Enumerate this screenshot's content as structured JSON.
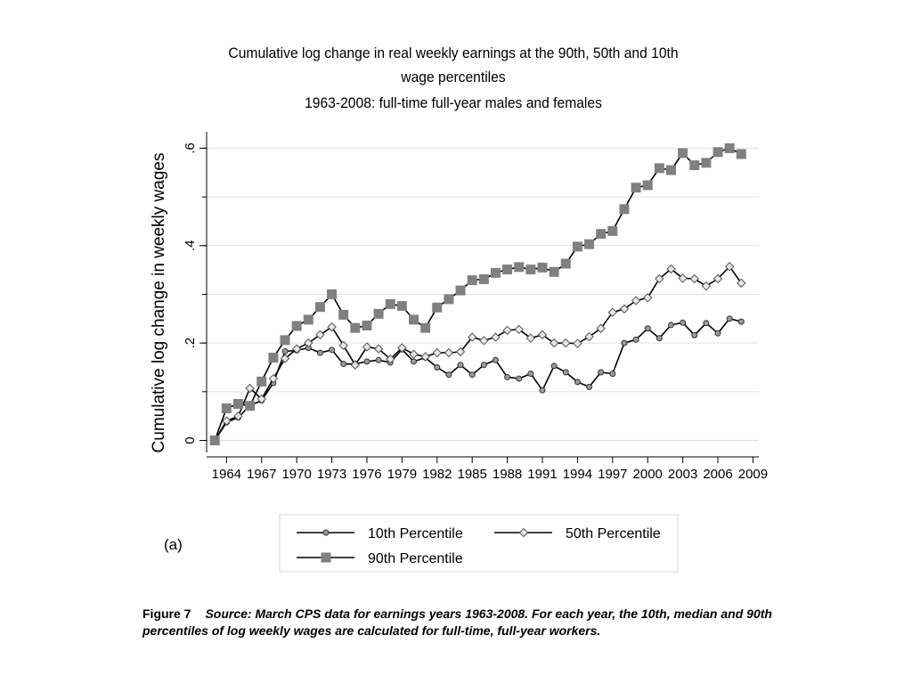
{
  "chart_data": {
    "type": "line",
    "title": "Cumulative log change in real weekly earnings at the 90th, 50th and 10th",
    "title_line2": "wage percentiles",
    "subtitle": "1963-2008: full-time full-year males and females",
    "xlabel": "",
    "ylabel": "Cumulative log change in weekly wages",
    "xlim": [
      1962.3,
      2009.5
    ],
    "ylim": [
      -0.01,
      0.63
    ],
    "x_ticks": [
      1964,
      1967,
      1970,
      1973,
      1976,
      1979,
      1982,
      1985,
      1988,
      1991,
      1994,
      1997,
      2000,
      2003,
      2006,
      2009
    ],
    "y_ticks": [
      {
        "value": 0,
        "label": "0"
      },
      {
        "value": 0.2,
        "label": ".2"
      },
      {
        "value": 0.4,
        "label": ".4"
      },
      {
        "value": 0.6,
        "label": ".6"
      }
    ],
    "grid": true,
    "legend_position": "bottom",
    "x": [
      1963,
      1964,
      1965,
      1966,
      1967,
      1968,
      1969,
      1970,
      1971,
      1972,
      1973,
      1974,
      1975,
      1976,
      1977,
      1978,
      1979,
      1980,
      1981,
      1982,
      1983,
      1984,
      1985,
      1986,
      1987,
      1988,
      1989,
      1990,
      1991,
      1992,
      1993,
      1994,
      1995,
      1996,
      1997,
      1998,
      1999,
      2000,
      2001,
      2002,
      2003,
      2004,
      2005,
      2006,
      2007,
      2008
    ],
    "series": [
      {
        "name": "10th Percentile",
        "marker": "circle",
        "values": [
          0,
          0.037,
          0.047,
          0.072,
          0.082,
          0.118,
          0.183,
          0.185,
          0.19,
          0.18,
          0.186,
          0.157,
          0.157,
          0.162,
          0.165,
          0.16,
          0.187,
          0.162,
          0.17,
          0.15,
          0.135,
          0.155,
          0.135,
          0.155,
          0.165,
          0.13,
          0.127,
          0.137,
          0.103,
          0.153,
          0.14,
          0.12,
          0.11,
          0.14,
          0.137,
          0.2,
          0.207,
          0.23,
          0.21,
          0.237,
          0.242,
          0.216,
          0.241,
          0.22,
          0.25,
          0.244
        ]
      },
      {
        "name": "50th Percentile",
        "marker": "diamond",
        "values": [
          0,
          0.04,
          0.05,
          0.107,
          0.085,
          0.127,
          0.168,
          0.188,
          0.2,
          0.217,
          0.233,
          0.195,
          0.155,
          0.192,
          0.188,
          0.167,
          0.19,
          0.177,
          0.172,
          0.18,
          0.18,
          0.182,
          0.212,
          0.205,
          0.212,
          0.226,
          0.228,
          0.21,
          0.217,
          0.2,
          0.2,
          0.199,
          0.213,
          0.23,
          0.263,
          0.27,
          0.287,
          0.293,
          0.332,
          0.352,
          0.333,
          0.332,
          0.317,
          0.332,
          0.357,
          0.323
        ]
      },
      {
        "name": "90th Percentile",
        "marker": "square",
        "values": [
          0,
          0.066,
          0.075,
          0.071,
          0.121,
          0.17,
          0.206,
          0.235,
          0.248,
          0.274,
          0.3,
          0.258,
          0.231,
          0.236,
          0.26,
          0.28,
          0.276,
          0.248,
          0.231,
          0.273,
          0.29,
          0.308,
          0.329,
          0.331,
          0.344,
          0.351,
          0.356,
          0.351,
          0.355,
          0.346,
          0.363,
          0.398,
          0.403,
          0.424,
          0.43,
          0.475,
          0.519,
          0.524,
          0.559,
          0.555,
          0.59,
          0.565,
          0.57,
          0.592,
          0.6,
          0.588
        ]
      }
    ]
  },
  "panel_label": "(a)",
  "caption": {
    "figure_label": "Figure 7",
    "source_text": "Source: March CPS data for earnings years 1963-2008. For each year, the 10th, median and 90th percentiles of log weekly wages are calculated for full-time, full-year workers."
  },
  "colors": {
    "line": "#000000",
    "marker_square": "#808080",
    "marker_diamond_fill": "#e6e6e6",
    "marker_circle_fill": "#9a9a9a",
    "grid": "#e0e0e0",
    "axis": "#000000"
  }
}
